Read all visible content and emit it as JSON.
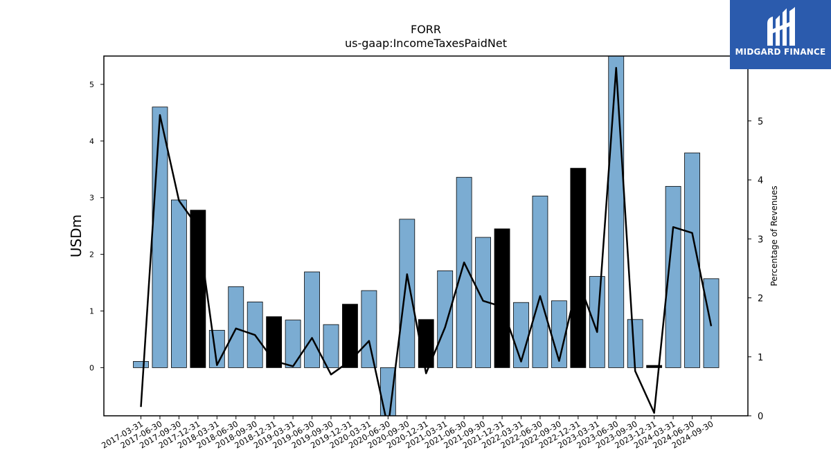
{
  "logo": {
    "text": "MIDGARD FINANCE"
  },
  "chart_data": {
    "type": "bar",
    "title": "FORR",
    "subtitle": "us-gaap:IncomeTaxesPaidNet",
    "ylabel": "USDm",
    "ylabel_right": "Percentage of Revenues",
    "ylim": [
      -0.85,
      5.5
    ],
    "ylim_right": [
      0,
      6.1
    ],
    "yticks": [
      0,
      1,
      2,
      3,
      4,
      5
    ],
    "yticks_right": [
      0,
      1,
      2,
      3,
      4,
      5
    ],
    "categories": [
      "2017-03-31",
      "2017-06-30",
      "2017-09-30",
      "2017-12-31",
      "2018-03-31",
      "2018-06-30",
      "2018-09-30",
      "2018-12-31",
      "2019-03-31",
      "2019-06-30",
      "2019-09-30",
      "2019-12-31",
      "2020-03-31",
      "2020-06-30",
      "2020-09-30",
      "2020-12-31",
      "2021-03-31",
      "2021-06-30",
      "2021-09-30",
      "2021-12-31",
      "2022-03-31",
      "2022-06-30",
      "2022-09-30",
      "2022-12-31",
      "2023-03-31",
      "2023-06-30",
      "2023-09-30",
      "2023-12-31",
      "2024-03-31",
      "2024-06-30",
      "2024-09-30"
    ],
    "series": [
      {
        "values": [
          0.11,
          4.6,
          2.96,
          2.78,
          0.66,
          1.43,
          1.16,
          0.9,
          0.84,
          1.69,
          0.76,
          1.12,
          1.36,
          -0.95,
          2.62,
          0.85,
          1.71,
          3.36,
          2.3,
          2.45,
          1.15,
          3.03,
          1.18,
          3.52,
          1.61,
          5.6,
          0.85,
          0.04,
          3.2,
          3.79,
          1.57
        ],
        "highlight": [
          false,
          false,
          false,
          true,
          false,
          false,
          false,
          true,
          false,
          false,
          false,
          true,
          false,
          false,
          false,
          true,
          false,
          false,
          false,
          true,
          false,
          false,
          false,
          true,
          false,
          false,
          false,
          true,
          false,
          false,
          false
        ]
      },
      {
        "axis": "right",
        "type": "line",
        "values": [
          0.15,
          5.1,
          3.65,
          3.2,
          0.86,
          1.48,
          1.37,
          0.93,
          0.84,
          1.32,
          0.7,
          0.93,
          1.27,
          -0.2,
          2.4,
          0.72,
          1.5,
          2.6,
          1.95,
          1.85,
          0.92,
          2.03,
          0.93,
          2.3,
          1.42,
          5.9,
          0.76,
          0.05,
          3.2,
          3.1,
          1.52
        ]
      }
    ],
    "colors": {
      "bar": "#7bacd2",
      "highlight_bar": "#000000",
      "line": "#000000"
    },
    "grid": false
  }
}
